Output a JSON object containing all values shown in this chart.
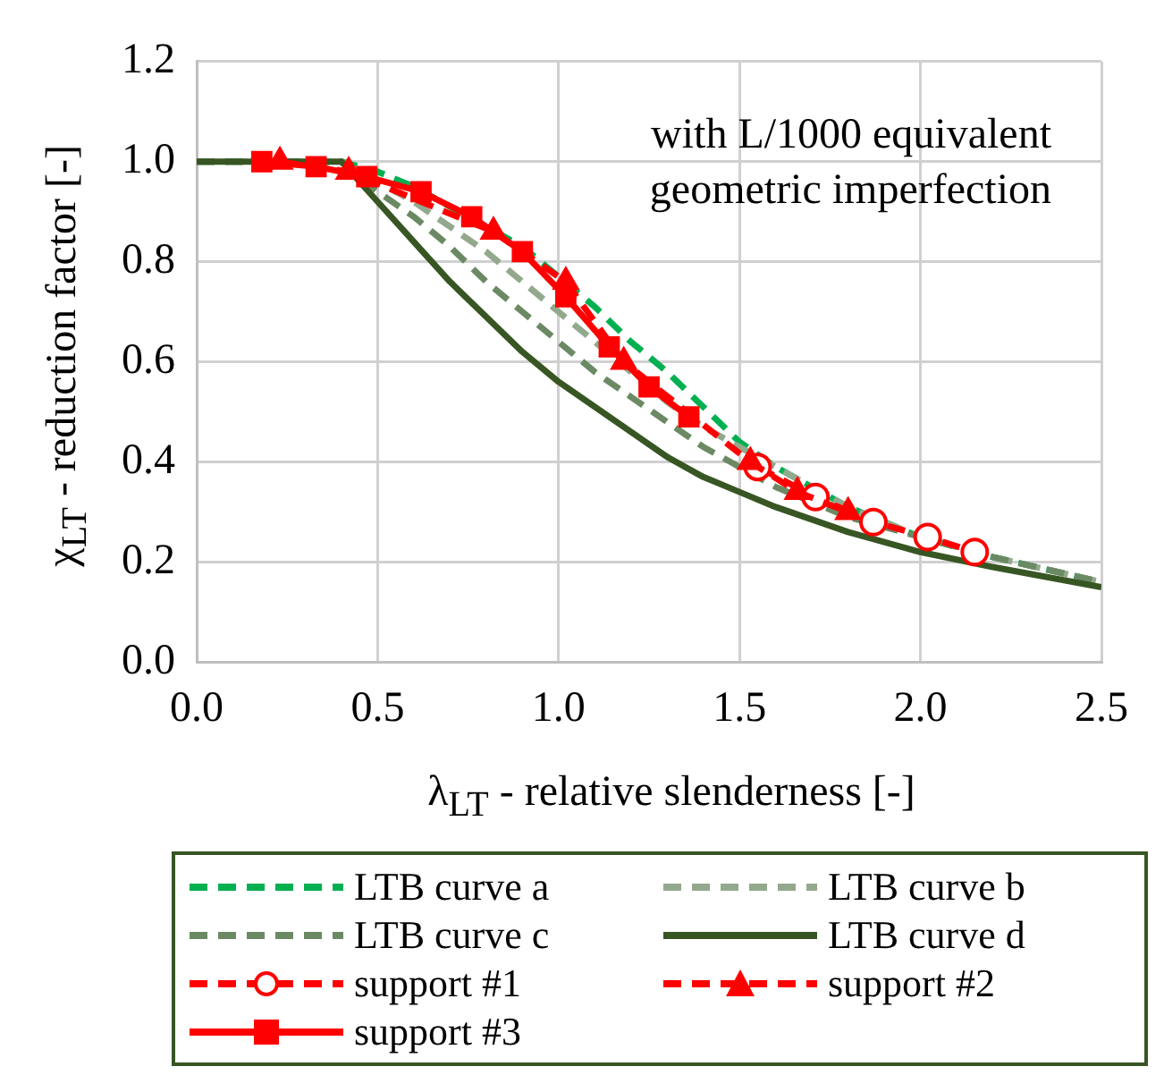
{
  "chart_data": {
    "type": "line",
    "xlabel": "λ$_{LT}$ - relative slenderness [-]",
    "ylabel": "χ$_{LT}$ - reduction factor [-]",
    "xlim": [
      0,
      2.5
    ],
    "xticks": [
      {
        "value": 0,
        "label": "0.0"
      },
      0.5,
      {
        "value": 1,
        "label": "1.0"
      },
      1.5,
      {
        "value": 2,
        "label": "2.0"
      },
      2.5
    ],
    "ylim": [
      0,
      1.2
    ],
    "yticks": [
      {
        "value": 0,
        "label": "0.0"
      },
      0.2,
      0.4,
      0.6,
      0.8,
      {
        "value": 1,
        "label": "1.0"
      },
      1.2
    ],
    "grid": true,
    "legend": "bottom",
    "annotations": [
      "with L/1000 equivalent\ngeometric imperfection"
    ],
    "series": [
      {
        "name": "LTB curve a",
        "color": "#00b050",
        "line_style": "dashed",
        "marker": "none",
        "x": [
          0,
          0.4,
          0.5,
          0.6,
          0.7,
          0.8,
          0.9,
          1.0,
          1.1,
          1.2,
          1.3,
          1.4,
          1.5,
          1.6,
          1.8,
          2.0,
          2.2,
          2.5
        ],
        "values": [
          1,
          1,
          0.98,
          0.95,
          0.91,
          0.87,
          0.83,
          0.77,
          0.71,
          0.64,
          0.58,
          0.51,
          0.44,
          0.39,
          0.31,
          0.25,
          0.21,
          0.16
        ]
      },
      {
        "name": "LTB curve b",
        "color": "#93a98d",
        "line_style": "dashed",
        "marker": "none",
        "x": [
          0,
          0.4,
          0.5,
          0.6,
          0.7,
          0.8,
          0.9,
          1.0,
          1.1,
          1.2,
          1.3,
          1.4,
          1.5,
          1.6,
          1.8,
          2.0,
          2.2,
          2.5
        ],
        "values": [
          1,
          1,
          0.96,
          0.92,
          0.87,
          0.82,
          0.76,
          0.7,
          0.64,
          0.58,
          0.52,
          0.47,
          0.43,
          0.39,
          0.31,
          0.25,
          0.21,
          0.16
        ]
      },
      {
        "name": "LTB curve c",
        "color": "#6b8a64",
        "line_style": "dashed",
        "marker": "none",
        "x": [
          0,
          0.4,
          0.5,
          0.6,
          0.7,
          0.8,
          0.9,
          1.0,
          1.1,
          1.2,
          1.3,
          1.4,
          1.5,
          1.6,
          1.8,
          2.0,
          2.2,
          2.5
        ],
        "values": [
          1,
          1,
          0.94,
          0.89,
          0.83,
          0.76,
          0.7,
          0.64,
          0.58,
          0.53,
          0.48,
          0.43,
          0.39,
          0.35,
          0.29,
          0.25,
          0.21,
          0.16
        ]
      },
      {
        "name": "LTB curve d",
        "color": "#375623",
        "line_style": "solid",
        "marker": "none",
        "x": [
          0,
          0.4,
          0.5,
          0.6,
          0.7,
          0.8,
          0.9,
          1.0,
          1.1,
          1.2,
          1.3,
          1.4,
          1.5,
          1.6,
          1.8,
          2.0,
          2.2,
          2.5
        ],
        "values": [
          1,
          1,
          0.92,
          0.84,
          0.76,
          0.69,
          0.62,
          0.56,
          0.51,
          0.46,
          0.41,
          0.37,
          0.34,
          0.31,
          0.26,
          0.22,
          0.19,
          0.15
        ]
      },
      {
        "name": "support #1",
        "color": "#ff0000",
        "line_style": "dashed",
        "marker": "circle",
        "x": [
          1.55,
          1.71,
          1.87,
          2.02,
          2.15
        ],
        "values": [
          0.39,
          0.33,
          0.28,
          0.25,
          0.22
        ]
      },
      {
        "name": "support #2",
        "color": "#ff0000",
        "line_style": "dashed",
        "marker": "triangle",
        "x": [
          0.23,
          0.42,
          0.82,
          1.02,
          1.18,
          1.53,
          1.66,
          1.8
        ],
        "values": [
          1.0,
          0.98,
          0.86,
          0.76,
          0.6,
          0.4,
          0.34,
          0.3
        ]
      },
      {
        "name": "support #3",
        "color": "#ff0000",
        "line_style": "solid",
        "marker": "square",
        "x": [
          0.18,
          0.33,
          0.47,
          0.62,
          0.76,
          0.9,
          1.02,
          1.14,
          1.25,
          1.36
        ],
        "values": [
          1.0,
          0.99,
          0.97,
          0.94,
          0.89,
          0.82,
          0.73,
          0.63,
          0.55,
          0.49
        ]
      }
    ]
  }
}
